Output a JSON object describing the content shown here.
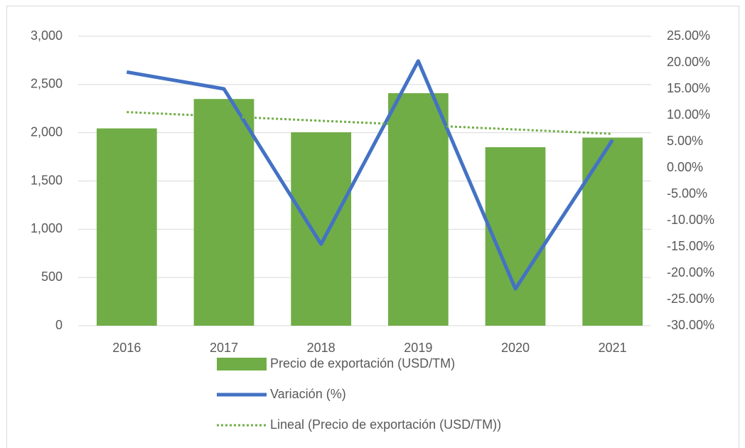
{
  "chart_data": {
    "type": "bar",
    "categories": [
      "2016",
      "2017",
      "2018",
      "2019",
      "2020",
      "2021"
    ],
    "series": [
      {
        "name": "Precio de exportación (USD/TM)",
        "type": "bar",
        "color": "#70ad47",
        "values": [
          2045,
          2350,
          2005,
          2410,
          1850,
          1950
        ]
      },
      {
        "name": "Variación (%)",
        "type": "line",
        "color": "#4472c4",
        "axis": "y2",
        "values": [
          18.2,
          15.0,
          -14.5,
          20.3,
          -23.0,
          5.3
        ]
      },
      {
        "name": "Lineal (Precio de exportación (USD/TM))",
        "type": "trend",
        "color": "#70ad47",
        "values": [
          2214,
          2169,
          2124,
          2079,
          2034,
          1989
        ]
      }
    ],
    "ylim": [
      0,
      3000
    ],
    "yticks": [
      0,
      500,
      {
        "value": 1000,
        "label": "1,000"
      },
      {
        "value": 1500,
        "label": "1,500"
      },
      {
        "value": 2000,
        "label": "2,000"
      },
      {
        "value": 2500,
        "label": "2,500"
      },
      {
        "value": 3000,
        "label": "3,000"
      }
    ],
    "y2lim": [
      -30,
      25
    ],
    "y2ticks": [
      {
        "value": -30,
        "label": "-30.00%"
      },
      {
        "value": -25,
        "label": "-25.00%"
      },
      {
        "value": -20,
        "label": "-20.00%"
      },
      {
        "value": -15,
        "label": "-15.00%"
      },
      {
        "value": -10,
        "label": "-10.00%"
      },
      {
        "value": -5,
        "label": "-5.00%"
      },
      {
        "value": 0,
        "label": "0.00%"
      },
      {
        "value": 5,
        "label": "5.00%"
      },
      {
        "value": 10,
        "label": "10.00%"
      },
      {
        "value": 15,
        "label": "15.00%"
      },
      {
        "value": 20,
        "label": "20.00%"
      },
      {
        "value": 25,
        "label": "25.00%"
      }
    ],
    "grid": true,
    "legend": "bottom"
  }
}
